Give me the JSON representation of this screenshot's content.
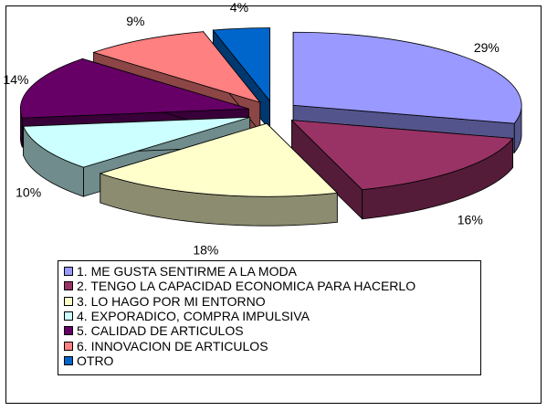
{
  "chart_data": {
    "type": "pie",
    "style": "3d-exploded",
    "legend_position": "bottom",
    "slices": [
      {
        "label": "1. ME GUSTA SENTIRME A LA MODA",
        "value": 29,
        "value_label": "29%",
        "color": "#9999ff"
      },
      {
        "label": "2. TENGO LA CAPACIDAD ECONOMICA PARA HACERLO",
        "value": 16,
        "value_label": "16%",
        "color": "#993366"
      },
      {
        "label": "3. LO HAGO POR MI ENTORNO",
        "value": 18,
        "value_label": "18%",
        "color": "#ffffcc"
      },
      {
        "label": "4. EXPORADICO, COMPRA IMPULSIVA",
        "value": 10,
        "value_label": "10%",
        "color": "#ccffff"
      },
      {
        "label": "5. CALIDAD DE ARTICULOS",
        "value": 14,
        "value_label": "14%",
        "color": "#660066"
      },
      {
        "label": "6. INNOVACION DE ARTICULOS",
        "value": 9,
        "value_label": "9%",
        "color": "#ff8080"
      },
      {
        "label": "OTRO",
        "value": 4,
        "value_label": "4%",
        "color": "#0066cc"
      }
    ]
  }
}
